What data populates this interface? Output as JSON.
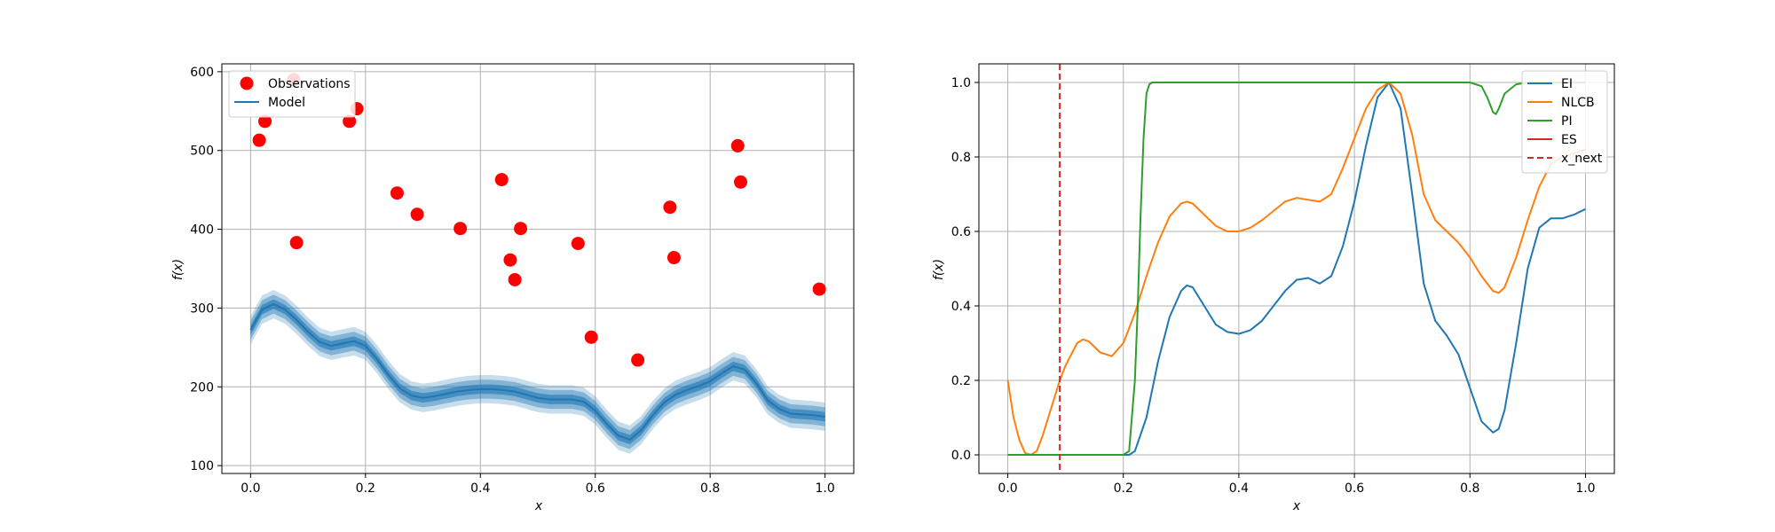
{
  "chart_data": [
    {
      "type": "scatter",
      "title": "",
      "xlabel": "x",
      "ylabel": "f(x)",
      "xlim": [
        -0.05,
        1.05
      ],
      "ylim": [
        90,
        610
      ],
      "xticks": [
        0.0,
        0.2,
        0.4,
        0.6,
        0.8,
        1.0
      ],
      "xtick_labels": [
        "0.0",
        "0.2",
        "0.4",
        "0.6",
        "0.8",
        "1.0"
      ],
      "yticks": [
        100,
        200,
        300,
        400,
        500,
        600
      ],
      "ytick_labels": [
        "100",
        "200",
        "300",
        "400",
        "500",
        "600"
      ],
      "grid": true,
      "legend_position": "top-left",
      "legend": [
        {
          "name": "Observations",
          "kind": "marker",
          "color": "#ff0000"
        },
        {
          "name": "Model",
          "kind": "line",
          "color": "#1f77b4"
        }
      ],
      "observations": {
        "name": "Observations",
        "color": "#ff0000",
        "x": [
          0.015,
          0.025,
          0.075,
          0.08,
          0.172,
          0.185,
          0.255,
          0.29,
          0.365,
          0.437,
          0.452,
          0.46,
          0.47,
          0.57,
          0.593,
          0.674,
          0.73,
          0.737,
          0.848,
          0.853,
          0.99
        ],
        "y": [
          513,
          537,
          590,
          383,
          537,
          553,
          446,
          419,
          401,
          463,
          361,
          336,
          401,
          382,
          263,
          234,
          428,
          364,
          506,
          460,
          324
        ]
      },
      "model": {
        "name": "Model",
        "color": "#1f77b4",
        "x": [
          0.0,
          0.02,
          0.04,
          0.06,
          0.08,
          0.1,
          0.12,
          0.14,
          0.16,
          0.18,
          0.2,
          0.22,
          0.24,
          0.26,
          0.28,
          0.3,
          0.32,
          0.34,
          0.36,
          0.38,
          0.4,
          0.42,
          0.44,
          0.46,
          0.48,
          0.5,
          0.52,
          0.54,
          0.56,
          0.58,
          0.6,
          0.62,
          0.64,
          0.66,
          0.68,
          0.7,
          0.72,
          0.74,
          0.76,
          0.78,
          0.8,
          0.82,
          0.84,
          0.86,
          0.88,
          0.9,
          0.92,
          0.94,
          0.96,
          0.98,
          1.0
        ],
        "mean": [
          272,
          298,
          305,
          298,
          285,
          270,
          257,
          252,
          255,
          258,
          252,
          235,
          215,
          198,
          189,
          186,
          188,
          191,
          194,
          196,
          197,
          197,
          196,
          194,
          190,
          186,
          184,
          184,
          184,
          181,
          170,
          153,
          138,
          133,
          145,
          164,
          180,
          190,
          196,
          201,
          207,
          217,
          226,
          222,
          205,
          183,
          172,
          166,
          165,
          164,
          162
        ],
        "bands": [
          {
            "std_multiplier": 1,
            "opacity": 0.6
          },
          {
            "std_multiplier": 2,
            "opacity": 0.4
          },
          {
            "std_multiplier": 3,
            "opacity": 0.25
          }
        ],
        "band_std": 6
      }
    },
    {
      "type": "line",
      "title": "",
      "xlabel": "x",
      "ylabel": "f(x)",
      "xlim": [
        -0.05,
        1.05
      ],
      "ylim": [
        -0.05,
        1.05
      ],
      "xticks": [
        0.0,
        0.2,
        0.4,
        0.6,
        0.8,
        1.0
      ],
      "xtick_labels": [
        "0.0",
        "0.2",
        "0.4",
        "0.6",
        "0.8",
        "1.0"
      ],
      "yticks": [
        0.0,
        0.2,
        0.4,
        0.6,
        0.8,
        1.0
      ],
      "ytick_labels": [
        "0.0",
        "0.2",
        "0.4",
        "0.6",
        "0.8",
        "1.0"
      ],
      "grid": true,
      "legend_position": "top-right",
      "legend": [
        {
          "name": "EI",
          "kind": "line",
          "color": "#1f77b4"
        },
        {
          "name": "NLCB",
          "kind": "line",
          "color": "#ff7f0e"
        },
        {
          "name": "PI",
          "kind": "line",
          "color": "#2ca02c"
        },
        {
          "name": "ES",
          "kind": "line",
          "color": "#d62728"
        },
        {
          "name": "x_next",
          "kind": "dashed",
          "color": "#d62728"
        }
      ],
      "series": [
        {
          "name": "EI",
          "color": "#1f77b4",
          "points": [
            [
              0.0,
              0.0
            ],
            [
              0.2,
              0.0
            ],
            [
              0.21,
              0.0
            ],
            [
              0.22,
              0.01
            ],
            [
              0.24,
              0.1
            ],
            [
              0.26,
              0.25
            ],
            [
              0.28,
              0.37
            ],
            [
              0.3,
              0.44
            ],
            [
              0.31,
              0.455
            ],
            [
              0.32,
              0.45
            ],
            [
              0.34,
              0.4
            ],
            [
              0.36,
              0.35
            ],
            [
              0.38,
              0.33
            ],
            [
              0.4,
              0.325
            ],
            [
              0.42,
              0.335
            ],
            [
              0.44,
              0.36
            ],
            [
              0.46,
              0.4
            ],
            [
              0.48,
              0.44
            ],
            [
              0.5,
              0.47
            ],
            [
              0.52,
              0.475
            ],
            [
              0.54,
              0.46
            ],
            [
              0.56,
              0.48
            ],
            [
              0.58,
              0.56
            ],
            [
              0.6,
              0.68
            ],
            [
              0.62,
              0.83
            ],
            [
              0.64,
              0.96
            ],
            [
              0.66,
              1.0
            ],
            [
              0.68,
              0.93
            ],
            [
              0.7,
              0.7
            ],
            [
              0.72,
              0.46
            ],
            [
              0.74,
              0.36
            ],
            [
              0.76,
              0.32
            ],
            [
              0.78,
              0.27
            ],
            [
              0.8,
              0.18
            ],
            [
              0.82,
              0.09
            ],
            [
              0.84,
              0.06
            ],
            [
              0.85,
              0.07
            ],
            [
              0.86,
              0.12
            ],
            [
              0.88,
              0.3
            ],
            [
              0.9,
              0.5
            ],
            [
              0.92,
              0.61
            ],
            [
              0.94,
              0.635
            ],
            [
              0.96,
              0.635
            ],
            [
              0.98,
              0.645
            ],
            [
              1.0,
              0.66
            ]
          ]
        },
        {
          "name": "NLCB",
          "color": "#ff7f0e",
          "points": [
            [
              0.0,
              0.2
            ],
            [
              0.01,
              0.1
            ],
            [
              0.02,
              0.04
            ],
            [
              0.03,
              0.005
            ],
            [
              0.04,
              0.0
            ],
            [
              0.05,
              0.01
            ],
            [
              0.06,
              0.05
            ],
            [
              0.08,
              0.15
            ],
            [
              0.09,
              0.2
            ],
            [
              0.1,
              0.24
            ],
            [
              0.12,
              0.3
            ],
            [
              0.13,
              0.31
            ],
            [
              0.14,
              0.305
            ],
            [
              0.16,
              0.275
            ],
            [
              0.18,
              0.265
            ],
            [
              0.2,
              0.3
            ],
            [
              0.22,
              0.38
            ],
            [
              0.24,
              0.48
            ],
            [
              0.26,
              0.57
            ],
            [
              0.28,
              0.64
            ],
            [
              0.3,
              0.675
            ],
            [
              0.31,
              0.68
            ],
            [
              0.32,
              0.675
            ],
            [
              0.34,
              0.645
            ],
            [
              0.36,
              0.615
            ],
            [
              0.38,
              0.6
            ],
            [
              0.4,
              0.6
            ],
            [
              0.42,
              0.61
            ],
            [
              0.44,
              0.63
            ],
            [
              0.46,
              0.655
            ],
            [
              0.48,
              0.68
            ],
            [
              0.5,
              0.69
            ],
            [
              0.52,
              0.685
            ],
            [
              0.54,
              0.68
            ],
            [
              0.56,
              0.7
            ],
            [
              0.58,
              0.77
            ],
            [
              0.6,
              0.85
            ],
            [
              0.62,
              0.93
            ],
            [
              0.64,
              0.98
            ],
            [
              0.66,
              1.0
            ],
            [
              0.68,
              0.97
            ],
            [
              0.7,
              0.86
            ],
            [
              0.72,
              0.7
            ],
            [
              0.74,
              0.63
            ],
            [
              0.76,
              0.6
            ],
            [
              0.78,
              0.57
            ],
            [
              0.8,
              0.53
            ],
            [
              0.82,
              0.48
            ],
            [
              0.84,
              0.44
            ],
            [
              0.85,
              0.435
            ],
            [
              0.86,
              0.45
            ],
            [
              0.88,
              0.53
            ],
            [
              0.9,
              0.63
            ],
            [
              0.92,
              0.72
            ],
            [
              0.94,
              0.78
            ],
            [
              0.96,
              0.8
            ],
            [
              0.98,
              0.81
            ],
            [
              1.0,
              0.82
            ]
          ]
        },
        {
          "name": "PI",
          "color": "#2ca02c",
          "points": [
            [
              0.0,
              0.0
            ],
            [
              0.2,
              0.0
            ],
            [
              0.21,
              0.01
            ],
            [
              0.22,
              0.2
            ],
            [
              0.225,
              0.4
            ],
            [
              0.23,
              0.65
            ],
            [
              0.235,
              0.85
            ],
            [
              0.24,
              0.97
            ],
            [
              0.245,
              0.995
            ],
            [
              0.25,
              1.0
            ],
            [
              0.8,
              1.0
            ],
            [
              0.82,
              0.99
            ],
            [
              0.83,
              0.96
            ],
            [
              0.84,
              0.92
            ],
            [
              0.845,
              0.915
            ],
            [
              0.85,
              0.93
            ],
            [
              0.86,
              0.97
            ],
            [
              0.88,
              0.995
            ],
            [
              0.9,
              1.0
            ],
            [
              1.0,
              1.0
            ]
          ]
        },
        {
          "name": "ES",
          "color": "#d62728",
          "points": []
        }
      ],
      "x_next": {
        "name": "x_next",
        "x": 0.09,
        "color": "#d62728"
      }
    }
  ]
}
